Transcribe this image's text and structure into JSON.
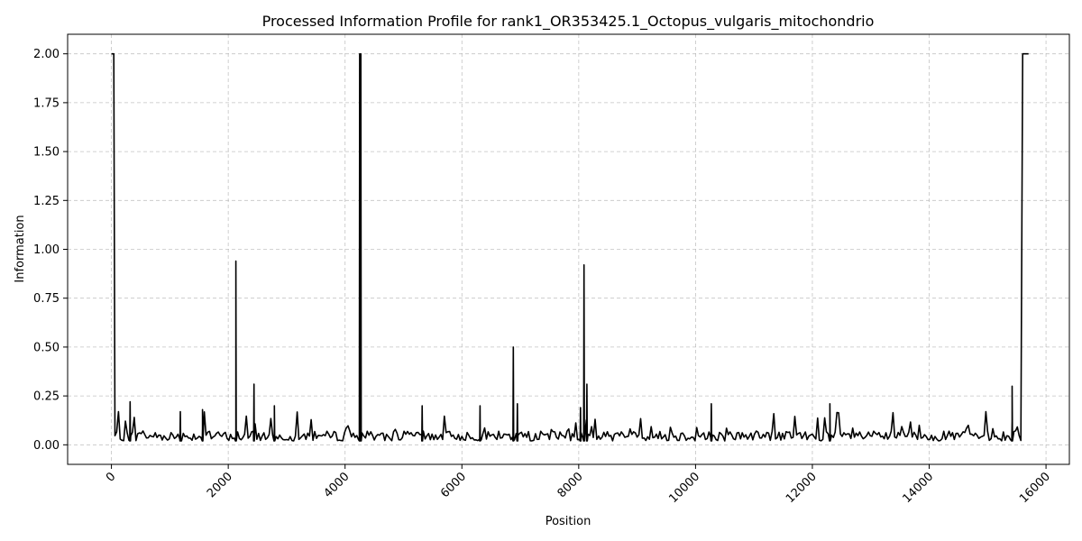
{
  "chart_data": {
    "type": "line",
    "title": "Processed Information Profile for rank1_OR353425.1_Octopus_vulgaris_mitochondrio",
    "xlabel": "Position",
    "ylabel": "Information",
    "xlim": [
      -750,
      16400
    ],
    "ylim": [
      -0.1,
      2.1
    ],
    "xticks": [
      0,
      2000,
      4000,
      6000,
      8000,
      10000,
      12000,
      14000,
      16000
    ],
    "xtick_labels": [
      "0",
      "2000",
      "4000",
      "6000",
      "8000",
      "10000",
      "12000",
      "14000",
      "16000"
    ],
    "yticks": [
      0.0,
      0.25,
      0.5,
      0.75,
      1.0,
      1.25,
      1.5,
      1.75,
      2.0
    ],
    "ytick_labels": [
      "0.00",
      "0.25",
      "0.50",
      "0.75",
      "1.00",
      "1.25",
      "1.50",
      "1.75",
      "2.00"
    ],
    "grid": true,
    "legend": "none",
    "line_color": "#000000",
    "baseline": 0.02,
    "x_start": 0,
    "x_end": 15700,
    "plateaus": [
      {
        "x_from": 0,
        "x_to": 40,
        "y": 2.0
      },
      {
        "x_from": 15600,
        "x_to": 15700,
        "y": 2.0
      }
    ],
    "peaks": [
      {
        "x": 2130,
        "y": 0.94
      },
      {
        "x": 2440,
        "y": 0.31
      },
      {
        "x": 2790,
        "y": 0.2
      },
      {
        "x": 4250,
        "y": 2.0
      },
      {
        "x": 4270,
        "y": 2.0
      },
      {
        "x": 5320,
        "y": 0.2
      },
      {
        "x": 6310,
        "y": 0.2
      },
      {
        "x": 6880,
        "y": 0.5
      },
      {
        "x": 6950,
        "y": 0.21
      },
      {
        "x": 8030,
        "y": 0.19
      },
      {
        "x": 8090,
        "y": 0.92
      },
      {
        "x": 8140,
        "y": 0.31
      },
      {
        "x": 10270,
        "y": 0.21
      },
      {
        "x": 12300,
        "y": 0.21
      },
      {
        "x": 15420,
        "y": 0.3
      },
      {
        "x": 320,
        "y": 0.22
      },
      {
        "x": 1180,
        "y": 0.17
      },
      {
        "x": 1560,
        "y": 0.18
      }
    ],
    "noise": {
      "min": 0.0,
      "max": 0.15,
      "step": 30
    }
  }
}
